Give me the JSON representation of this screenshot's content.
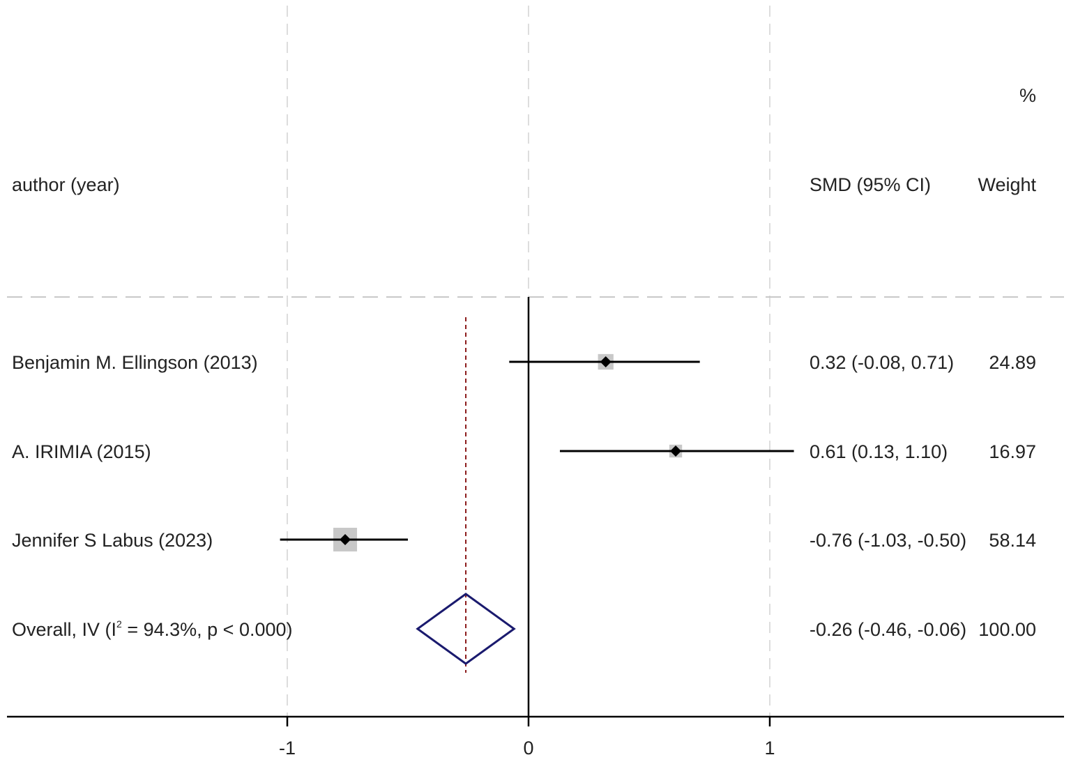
{
  "chart_data": {
    "type": "forest",
    "headers": {
      "study": "author (year)",
      "effect": "SMD (95% CI)",
      "weight_top": "%",
      "weight": "Weight"
    },
    "studies": [
      {
        "label": "Benjamin M. Ellingson  (2013)",
        "smd": 0.32,
        "lower": -0.08,
        "upper": 0.71,
        "weight": 24.89,
        "ci_text": "0.32 (-0.08, 0.71)",
        "weight_text": "24.89"
      },
      {
        "label": "A. IRIMIA (2015)",
        "smd": 0.61,
        "lower": 0.13,
        "upper": 1.1,
        "weight": 16.97,
        "ci_text": "0.61 (0.13, 1.10)",
        "weight_text": "16.97"
      },
      {
        "label": "Jennifer S Labus (2023)",
        "smd": -0.76,
        "lower": -1.03,
        "upper": -0.5,
        "weight": 58.14,
        "ci_text": "-0.76 (-1.03, -0.50)",
        "weight_text": "58.14"
      }
    ],
    "overall": {
      "label_prefix": "Overall, IV (I",
      "label_sup": "2",
      "label_suffix": " = 94.3%, p < 0.000)",
      "smd": -0.26,
      "lower": -0.46,
      "upper": -0.06,
      "weight": 100.0,
      "ci_text": "-0.26 (-0.46, -0.06)",
      "weight_text": "100.00"
    },
    "x_ticks": [
      {
        "value": -1,
        "label": "-1"
      },
      {
        "value": 0,
        "label": "0"
      },
      {
        "value": 1,
        "label": "1"
      }
    ],
    "null_line": 0,
    "grid": true,
    "colors": {
      "line": "#000000",
      "box": "#c8c8c8",
      "diamond": "#1a1a6e",
      "overall_line": "#8b1a1a",
      "grid": "#dddddd"
    }
  }
}
